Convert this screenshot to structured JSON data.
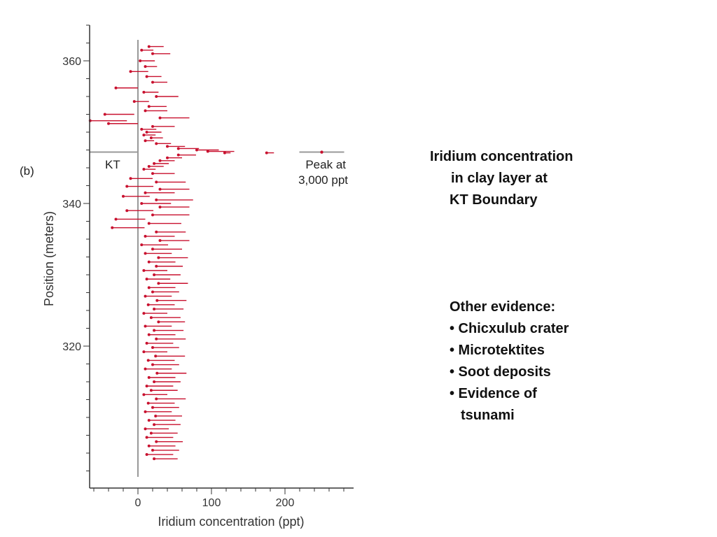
{
  "panel_label": "(b)",
  "caption": {
    "lines": [
      "Iridium concentration",
      "in clay layer at",
      "KT Boundary"
    ]
  },
  "evidence": {
    "heading": "Other evidence:",
    "items": [
      "• Chicxulub crater",
      "• Microtektites",
      "• Soot deposits",
      "• Evidence of"
    ],
    "continuation": "tsunami"
  },
  "chart_data": {
    "type": "scatter",
    "title": "",
    "xlabel": "Iridium concentration (ppt)",
    "ylabel": "Position (meters)",
    "xlim": [
      -65,
      285
    ],
    "ylim": [
      300,
      365
    ],
    "x_ticks": [
      0,
      100,
      200
    ],
    "x_minor_step": 20,
    "y_ticks": [
      320,
      340,
      360
    ],
    "y_minor_step": 2.5,
    "grid": false,
    "boundary": {
      "label": "KT",
      "position": 347.2
    },
    "peak_annotation": {
      "line1": "Peak at",
      "line2": "3,000 ppt",
      "position": 347.2,
      "x_display": 250
    },
    "colors": {
      "series": "#c8102e",
      "reference": "#999999",
      "axis": "#333333"
    },
    "series": [
      {
        "marker": "dot-with-error-bar",
        "points": [
          {
            "y": 362.0,
            "x": 15,
            "err": 10
          },
          {
            "y": 361.5,
            "x": 5,
            "err": 8
          },
          {
            "y": 361.0,
            "x": 20,
            "err": 12
          },
          {
            "y": 360.0,
            "x": 3,
            "err": 10
          },
          {
            "y": 359.2,
            "x": 10,
            "err": 8
          },
          {
            "y": 358.5,
            "x": -10,
            "err": 12
          },
          {
            "y": 357.8,
            "x": 12,
            "err": 10
          },
          {
            "y": 357.0,
            "x": 20,
            "err": 10
          },
          {
            "y": 356.2,
            "x": -30,
            "err": 15
          },
          {
            "y": 355.6,
            "x": 8,
            "err": 10
          },
          {
            "y": 355.0,
            "x": 25,
            "err": 15
          },
          {
            "y": 354.3,
            "x": -5,
            "err": 10
          },
          {
            "y": 353.6,
            "x": 15,
            "err": 12
          },
          {
            "y": 353.0,
            "x": 10,
            "err": 15
          },
          {
            "y": 352.5,
            "x": -45,
            "err": 20
          },
          {
            "y": 352.0,
            "x": 30,
            "err": 20
          },
          {
            "y": 351.6,
            "x": -65,
            "err": 25
          },
          {
            "y": 351.2,
            "x": -40,
            "err": 20
          },
          {
            "y": 350.8,
            "x": 20,
            "err": 15
          },
          {
            "y": 350.4,
            "x": 5,
            "err": 10
          },
          {
            "y": 350.0,
            "x": 12,
            "err": 10
          },
          {
            "y": 349.6,
            "x": 8,
            "err": 8
          },
          {
            "y": 349.2,
            "x": 18,
            "err": 8
          },
          {
            "y": 348.8,
            "x": 10,
            "err": 6
          },
          {
            "y": 348.4,
            "x": 25,
            "err": 10
          },
          {
            "y": 348.0,
            "x": 40,
            "err": 12
          },
          {
            "y": 347.7,
            "x": 55,
            "err": 14
          },
          {
            "y": 347.5,
            "x": 80,
            "err": 15
          },
          {
            "y": 347.3,
            "x": 95,
            "err": 18
          },
          {
            "y": 347.1,
            "x": 118,
            "err": 4
          },
          {
            "y": 347.1,
            "x": 175,
            "err": 5
          },
          {
            "y": 346.8,
            "x": 55,
            "err": 12
          },
          {
            "y": 346.4,
            "x": 40,
            "err": 10
          },
          {
            "y": 346.0,
            "x": 30,
            "err": 10
          },
          {
            "y": 345.6,
            "x": 22,
            "err": 10
          },
          {
            "y": 345.2,
            "x": 15,
            "err": 10
          },
          {
            "y": 344.8,
            "x": 8,
            "err": 8
          },
          {
            "y": 344.2,
            "x": 20,
            "err": 15
          },
          {
            "y": 343.5,
            "x": -10,
            "err": 15
          },
          {
            "y": 343.0,
            "x": 25,
            "err": 20
          },
          {
            "y": 342.4,
            "x": -15,
            "err": 18
          },
          {
            "y": 342.0,
            "x": 30,
            "err": 20
          },
          {
            "y": 341.5,
            "x": 10,
            "err": 20
          },
          {
            "y": 341.0,
            "x": -20,
            "err": 18
          },
          {
            "y": 340.5,
            "x": 25,
            "err": 25
          },
          {
            "y": 340.0,
            "x": 5,
            "err": 20
          },
          {
            "y": 339.5,
            "x": 30,
            "err": 20
          },
          {
            "y": 339.0,
            "x": -15,
            "err": 18
          },
          {
            "y": 338.4,
            "x": 20,
            "err": 25
          },
          {
            "y": 337.8,
            "x": -30,
            "err": 20
          },
          {
            "y": 337.2,
            "x": 15,
            "err": 22
          },
          {
            "y": 336.6,
            "x": -35,
            "err": 22
          },
          {
            "y": 336.0,
            "x": 25,
            "err": 20
          },
          {
            "y": 335.4,
            "x": 10,
            "err": 20
          },
          {
            "y": 334.8,
            "x": 30,
            "err": 20
          },
          {
            "y": 334.2,
            "x": 5,
            "err": 18
          },
          {
            "y": 333.6,
            "x": 20,
            "err": 20
          },
          {
            "y": 333.0,
            "x": 10,
            "err": 18
          },
          {
            "y": 332.4,
            "x": 28,
            "err": 20
          },
          {
            "y": 331.8,
            "x": 15,
            "err": 18
          },
          {
            "y": 331.2,
            "x": 25,
            "err": 18
          },
          {
            "y": 330.6,
            "x": 8,
            "err": 16
          },
          {
            "y": 330.0,
            "x": 22,
            "err": 18
          },
          {
            "y": 329.4,
            "x": 12,
            "err": 16
          },
          {
            "y": 328.8,
            "x": 28,
            "err": 20
          },
          {
            "y": 328.2,
            "x": 15,
            "err": 18
          },
          {
            "y": 327.6,
            "x": 20,
            "err": 18
          },
          {
            "y": 327.0,
            "x": 10,
            "err": 18
          },
          {
            "y": 326.4,
            "x": 26,
            "err": 20
          },
          {
            "y": 325.8,
            "x": 14,
            "err": 18
          },
          {
            "y": 325.2,
            "x": 22,
            "err": 20
          },
          {
            "y": 324.6,
            "x": 8,
            "err": 16
          },
          {
            "y": 324.0,
            "x": 18,
            "err": 20
          },
          {
            "y": 323.4,
            "x": 28,
            "err": 18
          },
          {
            "y": 322.8,
            "x": 10,
            "err": 18
          },
          {
            "y": 322.2,
            "x": 22,
            "err": 20
          },
          {
            "y": 321.6,
            "x": 15,
            "err": 18
          },
          {
            "y": 321.0,
            "x": 25,
            "err": 20
          },
          {
            "y": 320.4,
            "x": 12,
            "err": 18
          },
          {
            "y": 319.8,
            "x": 20,
            "err": 18
          },
          {
            "y": 319.2,
            "x": 8,
            "err": 16
          },
          {
            "y": 318.6,
            "x": 24,
            "err": 20
          },
          {
            "y": 318.0,
            "x": 14,
            "err": 18
          },
          {
            "y": 317.4,
            "x": 20,
            "err": 18
          },
          {
            "y": 316.8,
            "x": 10,
            "err": 18
          },
          {
            "y": 316.2,
            "x": 26,
            "err": 20
          },
          {
            "y": 315.6,
            "x": 15,
            "err": 18
          },
          {
            "y": 315.0,
            "x": 22,
            "err": 18
          },
          {
            "y": 314.4,
            "x": 12,
            "err": 18
          },
          {
            "y": 313.8,
            "x": 18,
            "err": 18
          },
          {
            "y": 313.2,
            "x": 8,
            "err": 16
          },
          {
            "y": 312.6,
            "x": 25,
            "err": 20
          },
          {
            "y": 312.0,
            "x": 14,
            "err": 18
          },
          {
            "y": 311.4,
            "x": 20,
            "err": 18
          },
          {
            "y": 310.8,
            "x": 10,
            "err": 18
          },
          {
            "y": 310.2,
            "x": 24,
            "err": 18
          },
          {
            "y": 309.6,
            "x": 15,
            "err": 18
          },
          {
            "y": 309.0,
            "x": 22,
            "err": 18
          },
          {
            "y": 308.4,
            "x": 10,
            "err": 16
          },
          {
            "y": 307.8,
            "x": 18,
            "err": 18
          },
          {
            "y": 307.2,
            "x": 12,
            "err": 18
          },
          {
            "y": 306.6,
            "x": 25,
            "err": 18
          },
          {
            "y": 306.0,
            "x": 15,
            "err": 18
          },
          {
            "y": 305.4,
            "x": 20,
            "err": 18
          },
          {
            "y": 304.8,
            "x": 12,
            "err": 18
          },
          {
            "y": 304.2,
            "x": 22,
            "err": 16
          }
        ]
      }
    ]
  }
}
